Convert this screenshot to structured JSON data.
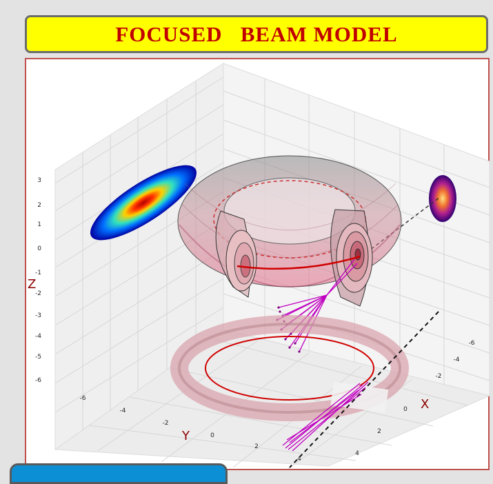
{
  "header": {
    "title": "FOCUSED   BEAM MODEL"
  },
  "colors": {
    "title_bg": "#ffff00",
    "title_text": "#c00000",
    "beam": "#c000c0",
    "circle": "#d00000",
    "tab": "#0d8fd6"
  },
  "chart_data": {
    "type": "3d-surface",
    "axes": {
      "x": {
        "label": "X",
        "ticks": [
          "-6",
          "-4",
          "-2",
          "0",
          "2",
          "4"
        ]
      },
      "y": {
        "label": "Y",
        "ticks": [
          "-6",
          "-4",
          "-2",
          "0",
          "2",
          "4"
        ]
      },
      "z": {
        "label": "Z",
        "ticks": [
          "3",
          "2",
          "1",
          "0",
          "-1",
          "-2",
          "-3",
          "-4",
          "-5",
          "-6"
        ]
      }
    },
    "grid": true
  }
}
